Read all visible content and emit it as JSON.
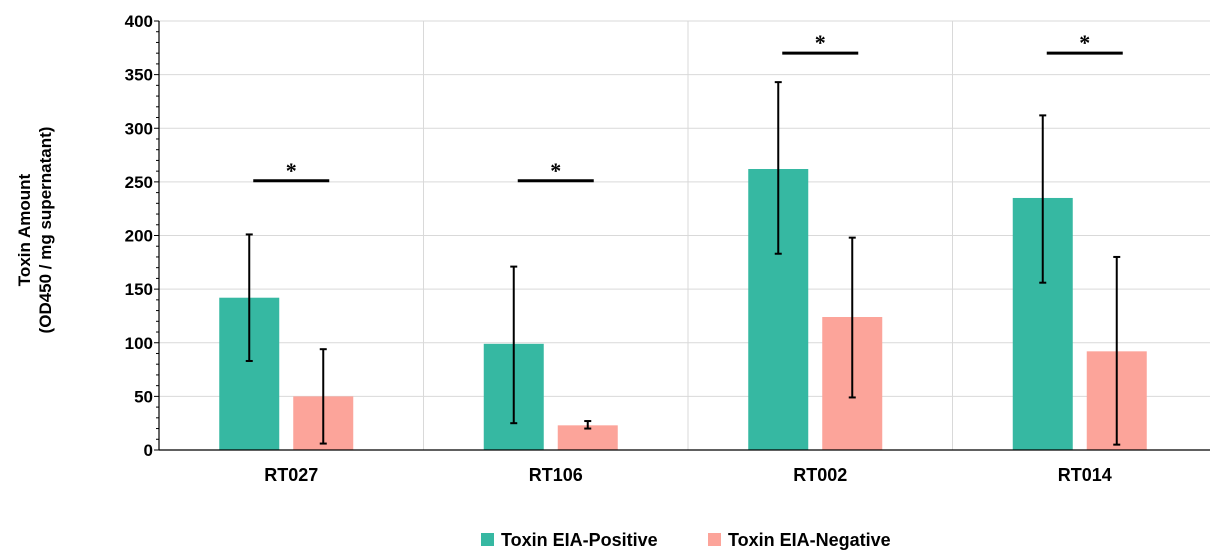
{
  "chart_data": {
    "type": "bar",
    "categories": [
      "RT027",
      "RT106",
      "RT002",
      "RT014"
    ],
    "series": [
      {
        "name": "Toxin EIA-Positive",
        "color": "#36b8a2",
        "values": [
          142,
          99,
          262,
          235
        ],
        "error_low": [
          83,
          25,
          183,
          156
        ],
        "error_high": [
          201,
          171,
          343,
          312
        ]
      },
      {
        "name": "Toxin EIA-Negative",
        "color": "#fca49a",
        "values": [
          50,
          23,
          124,
          92
        ],
        "error_low": [
          6,
          20,
          49,
          5
        ],
        "error_high": [
          94,
          27,
          198,
          180
        ]
      }
    ],
    "significance": [
      {
        "category": "RT027",
        "label": "*",
        "y": 251
      },
      {
        "category": "RT106",
        "label": "*",
        "y": 251
      },
      {
        "category": "RT002",
        "label": "*",
        "y": 370
      },
      {
        "category": "RT014",
        "label": "*",
        "y": 370
      }
    ],
    "ylabel_line1": "Toxin Amount",
    "ylabel_line2": "(OD450 / mg supernatant)",
    "ylim": [
      0,
      400
    ],
    "yticks": [
      0,
      50,
      100,
      150,
      200,
      250,
      300,
      350,
      400
    ],
    "grid": true,
    "legend_position": "bottom"
  }
}
